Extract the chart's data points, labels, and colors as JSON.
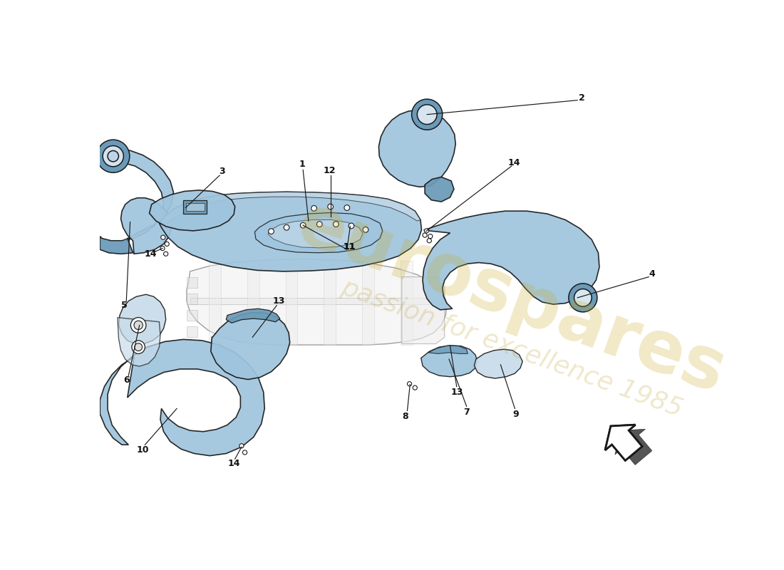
{
  "bg_color": "#ffffff",
  "part_color": "#9fc5de",
  "part_color_dark": "#6a9ab8",
  "part_color_light": "#c8dcea",
  "frame_color": "#e0e0e0",
  "line_color": "#1a1a1a",
  "text_color": "#111111",
  "wm_color1": "#c8a820",
  "wm_color2": "#b89618",
  "wm_text1": "eurospares",
  "wm_text2": "passion for excellence 1985",
  "figsize": [
    11.0,
    8.0
  ],
  "dpi": 100
}
